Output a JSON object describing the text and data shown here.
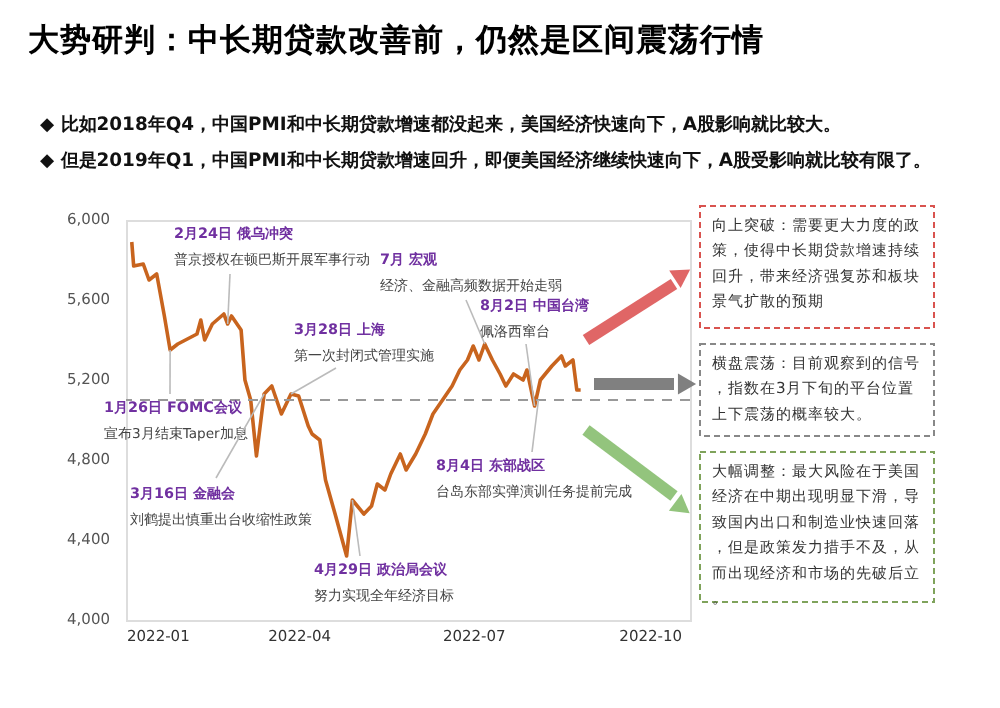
{
  "chart_data": {
    "type": "line",
    "title": "大势研判：中长期贷款改善前，仍然是区间震荡行情",
    "x": [
      "2022-01-04",
      "2022-01-05",
      "2022-01-10",
      "2022-01-13",
      "2022-01-17",
      "2022-01-21",
      "2022-01-24",
      "2022-01-28",
      "2022-02-07",
      "2022-02-09",
      "2022-02-11",
      "2022-02-15",
      "2022-02-21",
      "2022-02-23",
      "2022-02-25",
      "2022-03-02",
      "2022-03-04",
      "2022-03-07",
      "2022-03-10",
      "2022-03-14",
      "2022-03-18",
      "2022-03-23",
      "2022-03-28",
      "2022-04-01",
      "2022-04-06",
      "2022-04-08",
      "2022-04-12",
      "2022-04-15",
      "2022-04-20",
      "2022-04-26",
      "2022-04-29",
      "2022-05-05",
      "2022-05-09",
      "2022-05-12",
      "2022-05-16",
      "2022-05-19",
      "2022-05-24",
      "2022-05-27",
      "2022-06-01",
      "2022-06-06",
      "2022-06-10",
      "2022-06-15",
      "2022-06-20",
      "2022-06-24",
      "2022-06-28",
      "2022-07-01",
      "2022-07-04",
      "2022-07-07",
      "2022-07-11",
      "2022-07-15",
      "2022-07-18",
      "2022-07-22",
      "2022-07-27",
      "2022-07-29",
      "2022-08-02",
      "2022-08-05",
      "2022-08-11",
      "2022-08-16",
      "2022-08-18",
      "2022-08-22",
      "2022-08-24",
      "2022-08-26"
    ],
    "series": [
      {
        "color": "#c8641e",
        "values": [
          5890,
          5770,
          5780,
          5700,
          5730,
          5520,
          5350,
          5380,
          5430,
          5500,
          5400,
          5480,
          5530,
          5480,
          5520,
          5450,
          5200,
          5100,
          4820,
          5130,
          5170,
          5030,
          5130,
          5120,
          4970,
          4930,
          4900,
          4700,
          4530,
          4320,
          4600,
          4530,
          4570,
          4680,
          4650,
          4730,
          4830,
          4750,
          4830,
          4930,
          5030,
          5100,
          5170,
          5250,
          5300,
          5370,
          5300,
          5380,
          5300,
          5230,
          5170,
          5230,
          5200,
          5250,
          5070,
          5200,
          5270,
          5320,
          5270,
          5300,
          5150,
          5150
        ]
      }
    ],
    "xlim": [
      "2022-01-01",
      "2022-10-22"
    ],
    "xticks": [
      "2022-01",
      "2022-04",
      "2022-07",
      "2022-10"
    ],
    "ylim": [
      4000,
      6000
    ],
    "yticks": [
      {
        "value": 4000,
        "label": "4,000"
      },
      {
        "value": 4400,
        "label": "4,400"
      },
      {
        "value": 4800,
        "label": "4,800"
      },
      {
        "value": 5200,
        "label": "5,200"
      },
      {
        "value": 5600,
        "label": "5,600"
      },
      {
        "value": 6000,
        "label": "6,000"
      }
    ],
    "grid": false,
    "marker": "none",
    "line_style": "solid",
    "ref_lines": [
      {
        "axis": "y",
        "value": 5100,
        "color": "#999999",
        "line_style": "dashed"
      }
    ],
    "annotations": [
      "◆ 比如2018年Q4，中国PMI和中长期贷款增速都没起来，美国经济快速向下，A股影响就比较大。",
      "◆ 但是2019年Q1，中国PMI和中长期贷款增速回升，即便美国经济继续快速向下，A股受影响就比较有限了。",
      {
        "text": "1月26日 FOMC会议",
        "x": "2022-01-24",
        "y": 5350
      },
      "宣布3月结束Taper加息",
      "2月24日 俄乌冲突",
      {
        "text": "普京授权在顿巴斯开展军事行动",
        "x": "2022-02-23",
        "y": 5480
      },
      {
        "text": "3月16日 金融会",
        "x": "2022-03-14",
        "y": 5130
      },
      "刘鹤提出慎重出台收缩性政策",
      "3月28日 上海",
      {
        "text": "第一次封闭式管理实施",
        "x": "2022-03-28",
        "y": 5130
      },
      {
        "text": "4月29日 政治局会议",
        "x": "2022-04-29",
        "y": 4600
      },
      "努力实现全年经济目标",
      "7月 宏观",
      {
        "text": "经济、金融高频数据开始走弱",
        "x": "2022-07-07",
        "y": 5380
      },
      "8月2日 中国台湾",
      {
        "text": "佩洛西窜台",
        "x": "2022-08-02",
        "y": 5070
      },
      {
        "text": "8月4日 东部战区",
        "x": "2022-08-04",
        "y": 5100
      },
      "台岛东部实弹演训任务提前完成",
      "向上突破：需要更大力度的政策，使得中长期贷款增速持续回升，带来经济强复苏和板块景气扩散的预期",
      "横盘震荡：目前观察到的信号，指数在3月下旬的平台位置上下震荡的概率较大。",
      "大幅调整：最大风险在于美国经济在中期出现明显下滑，导致国内出口和制造业快速回落，但是政策发力措手不及，从而出现经济和市场的先破后立。"
    ]
  }
}
